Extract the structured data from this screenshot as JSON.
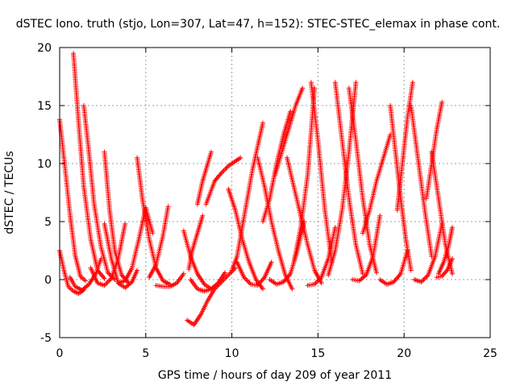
{
  "chart_data": {
    "type": "scatter",
    "title": "dSTEC Iono. truth (stjo, Lon=307, Lat=47, h=152): STEC-STEC_elemax in phase cont.",
    "xlabel": "GPS time / hours of day 209 of year 2011",
    "ylabel": "dSTEC  / TECUs",
    "xlim": [
      0,
      25
    ],
    "ylim": [
      -5,
      20
    ],
    "xticks": [
      0,
      5,
      10,
      15,
      20,
      25
    ],
    "yticks": [
      -5,
      0,
      5,
      10,
      15,
      20
    ],
    "grid": true,
    "marker": "+",
    "colors": {
      "series": "#ff0000",
      "grid": "#a0a0a0",
      "axis": "#000000"
    },
    "series": [
      {
        "x": [
          0.0,
          0.3,
          0.6,
          0.9,
          1.2,
          1.5
        ],
        "y": [
          13.8,
          9.8,
          5.6,
          2.1,
          0.3,
          -0.1
        ]
      },
      {
        "x": [
          0.0,
          0.25,
          0.5,
          0.8,
          1.1,
          1.4
        ],
        "y": [
          2.5,
          0.8,
          -0.6,
          -1.0,
          -1.2,
          -0.9
        ]
      },
      {
        "x": [
          0.8,
          1.1,
          1.4,
          1.8,
          2.2,
          2.6
        ],
        "y": [
          19.5,
          13.5,
          8.0,
          3.5,
          0.8,
          0.1
        ]
      },
      {
        "x": [
          0.6,
          0.9,
          1.3,
          1.7,
          2.1,
          2.4
        ],
        "y": [
          0.2,
          -0.6,
          -0.9,
          -0.4,
          0.5,
          1.8
        ]
      },
      {
        "x": [
          1.4,
          1.7,
          2.0,
          2.4,
          2.8,
          3.2
        ],
        "y": [
          15.0,
          11.0,
          6.5,
          2.8,
          0.6,
          0.0
        ]
      },
      {
        "x": [
          1.8,
          2.2,
          2.6,
          3.0,
          3.4,
          3.8
        ],
        "y": [
          1.0,
          -0.3,
          -0.5,
          0.1,
          1.8,
          4.8
        ]
      },
      {
        "x": [
          2.6,
          2.9,
          3.2,
          3.6,
          4.0
        ],
        "y": [
          11.0,
          6.0,
          2.5,
          0.4,
          -0.3
        ]
      },
      {
        "x": [
          2.6,
          3.0,
          3.4,
          3.8,
          4.2,
          4.5
        ],
        "y": [
          4.8,
          1.8,
          -0.3,
          -0.7,
          -0.2,
          0.8
        ]
      },
      {
        "x": [
          4.5,
          4.8,
          5.2,
          5.6,
          6.0,
          6.4
        ],
        "y": [
          10.5,
          7.0,
          3.5,
          1.0,
          -0.1,
          -0.4
        ]
      },
      {
        "x": [
          3.4,
          3.8,
          4.2,
          4.6,
          5.0,
          5.4
        ],
        "y": [
          -0.3,
          -0.1,
          1.0,
          3.5,
          6.2,
          4.0
        ]
      },
      {
        "x": [
          5.2,
          5.6,
          6.0,
          6.3
        ],
        "y": [
          0.2,
          1.3,
          3.8,
          6.3
        ]
      },
      {
        "x": [
          5.6,
          6.0,
          6.4,
          6.8,
          7.2
        ],
        "y": [
          -0.5,
          -0.6,
          -0.6,
          -0.3,
          0.5
        ]
      },
      {
        "x": [
          7.2,
          7.6,
          8.0,
          8.4,
          8.8
        ],
        "y": [
          4.2,
          2.0,
          0.5,
          -0.4,
          -0.8
        ]
      },
      {
        "x": [
          7.5,
          7.7,
          8.0,
          8.3
        ],
        "y": [
          0.9,
          2.5,
          4.0,
          5.5
        ]
      },
      {
        "x": [
          7.6,
          8.0,
          8.4,
          8.8,
          9.2,
          9.6
        ],
        "y": [
          0.0,
          -0.8,
          -1.0,
          -0.8,
          -0.3,
          0.6
        ]
      },
      {
        "x": [
          8.0,
          8.3,
          8.6,
          8.8
        ],
        "y": [
          6.5,
          8.5,
          10.0,
          11.0
        ]
      },
      {
        "x": [
          7.4,
          7.8,
          8.2,
          8.6,
          9.0,
          9.4,
          9.8,
          10.2
        ],
        "y": [
          -3.5,
          -3.9,
          -3.0,
          -1.8,
          -0.8,
          -0.2,
          0.4,
          1.0
        ]
      },
      {
        "x": [
          8.5,
          9.0,
          9.4,
          9.8,
          10.2,
          10.5
        ],
        "y": [
          6.5,
          8.5,
          9.2,
          9.8,
          10.2,
          10.5
        ]
      },
      {
        "x": [
          9.8,
          10.2,
          10.6,
          11.0,
          11.4,
          11.8
        ],
        "y": [
          7.8,
          6.0,
          3.5,
          1.5,
          0.0,
          -0.8
        ]
      },
      {
        "x": [
          10.0,
          10.3,
          10.6,
          10.9,
          11.2,
          11.5,
          11.8
        ],
        "y": [
          0.8,
          2.0,
          4.5,
          7.0,
          9.5,
          11.5,
          13.5
        ]
      },
      {
        "x": [
          10.3,
          10.7,
          11.1,
          11.5,
          11.9,
          12.3
        ],
        "y": [
          1.5,
          0.2,
          -0.4,
          -0.5,
          0.2,
          1.5
        ]
      },
      {
        "x": [
          11.5,
          11.9,
          12.3,
          12.7,
          13.1,
          13.5
        ],
        "y": [
          10.5,
          8.0,
          5.0,
          2.5,
          0.4,
          -0.8
        ]
      },
      {
        "x": [
          11.8,
          12.2,
          12.6,
          13.0,
          13.4
        ],
        "y": [
          5.0,
          7.0,
          10.0,
          12.5,
          14.5
        ]
      },
      {
        "x": [
          12.2,
          12.6,
          13.0,
          13.4,
          13.8,
          14.2
        ],
        "y": [
          0.0,
          -0.4,
          -0.2,
          0.5,
          2.5,
          5.0
        ]
      },
      {
        "x": [
          12.5,
          12.9,
          13.3,
          13.7,
          14.1
        ],
        "y": [
          9.0,
          11.0,
          13.0,
          15.0,
          16.5
        ]
      },
      {
        "x": [
          13.2,
          13.6,
          14.0,
          14.4,
          14.8,
          15.2
        ],
        "y": [
          10.5,
          8.0,
          5.5,
          3.0,
          0.8,
          -0.3
        ]
      },
      {
        "x": [
          13.6,
          14.0,
          14.4,
          14.8
        ],
        "y": [
          1.5,
          4.5,
          9.0,
          16.5
        ]
      },
      {
        "x": [
          14.6,
          15.0,
          15.4,
          15.8
        ],
        "y": [
          17.0,
          12.0,
          6.0,
          1.5
        ]
      },
      {
        "x": [
          14.4,
          14.8,
          15.2,
          15.6,
          16.0
        ],
        "y": [
          -0.5,
          -0.4,
          0.2,
          1.8,
          4.5
        ]
      },
      {
        "x": [
          15.6,
          16.0,
          16.4,
          16.8,
          17.2
        ],
        "y": [
          0.4,
          2.5,
          6.0,
          11.0,
          17.0
        ]
      },
      {
        "x": [
          16.0,
          16.4,
          16.8,
          17.2,
          17.6
        ],
        "y": [
          17.0,
          12.0,
          7.0,
          3.0,
          0.5
        ]
      },
      {
        "x": [
          16.8,
          17.2,
          17.6,
          18.0,
          18.4
        ],
        "y": [
          16.5,
          12.0,
          7.0,
          3.0,
          0.6
        ]
      },
      {
        "x": [
          17.0,
          17.4,
          17.8,
          18.2,
          18.6
        ],
        "y": [
          0.0,
          -0.1,
          0.4,
          2.0,
          5.5
        ]
      },
      {
        "x": [
          17.6,
          18.0,
          18.4,
          18.8,
          19.2
        ],
        "y": [
          4.0,
          6.0,
          8.5,
          10.5,
          12.5
        ]
      },
      {
        "x": [
          18.6,
          19.0,
          19.4,
          19.8,
          20.2
        ],
        "y": [
          0.0,
          -0.4,
          -0.2,
          0.5,
          2.5
        ]
      },
      {
        "x": [
          19.2,
          19.5,
          19.8,
          20.1,
          20.4
        ],
        "y": [
          15.0,
          11.0,
          7.0,
          3.5,
          0.8
        ]
      },
      {
        "x": [
          19.6,
          19.9,
          20.2,
          20.5
        ],
        "y": [
          6.0,
          10.0,
          14.0,
          17.0
        ]
      },
      {
        "x": [
          20.4,
          20.8,
          21.2,
          21.6
        ],
        "y": [
          15.0,
          10.5,
          6.0,
          2.0
        ]
      },
      {
        "x": [
          20.6,
          21.0,
          21.4,
          21.8,
          22.2
        ],
        "y": [
          0.0,
          -0.2,
          0.4,
          2.0,
          4.8
        ]
      },
      {
        "x": [
          21.3,
          21.6,
          21.9,
          22.2
        ],
        "y": [
          7.0,
          10.0,
          13.0,
          15.3
        ]
      },
      {
        "x": [
          21.6,
          22.0,
          22.4,
          22.8
        ],
        "y": [
          11.0,
          7.0,
          3.0,
          0.5
        ]
      },
      {
        "x": [
          22.0,
          22.3,
          22.6,
          22.8
        ],
        "y": [
          0.5,
          1.5,
          3.0,
          4.5
        ]
      },
      {
        "x": [
          21.9,
          22.2,
          22.5,
          22.8
        ],
        "y": [
          0.2,
          0.3,
          0.8,
          1.8
        ]
      }
    ]
  }
}
